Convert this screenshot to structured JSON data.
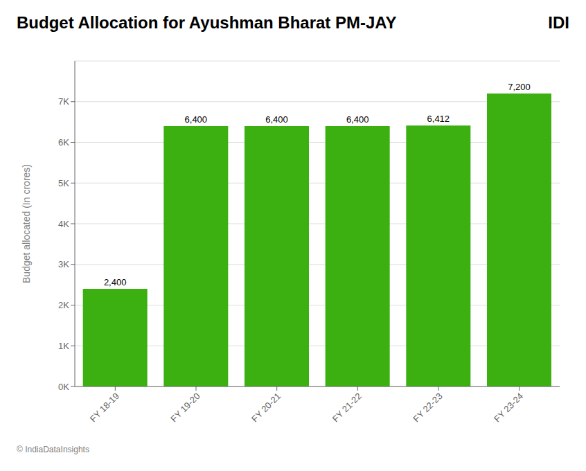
{
  "chart_data": {
    "type": "bar",
    "title": "Budget Allocation for Ayushman Bharat PM-JAY",
    "categories": [
      "FY 18-19",
      "FY 19-20",
      "FY 20-21",
      "FY 21-22",
      "FY 22-23",
      "FY 23-24"
    ],
    "values": [
      2400,
      6400,
      6400,
      6400,
      6412,
      7200
    ],
    "value_labels": [
      "2,400",
      "6,400",
      "6,400",
      "6,400",
      "6,412",
      "7,200"
    ],
    "data_labels": true,
    "color": "#3cb010",
    "ylabel": "Budget allocated (In crores)",
    "ylim": [
      0,
      8000
    ],
    "yticks": [
      {
        "value": 0,
        "label": "0K"
      },
      {
        "value": 1000,
        "label": "1K"
      },
      {
        "value": 2000,
        "label": "2K"
      },
      {
        "value": 3000,
        "label": "3K"
      },
      {
        "value": 4000,
        "label": "4K"
      },
      {
        "value": 5000,
        "label": "5K"
      },
      {
        "value": 6000,
        "label": "6K"
      },
      {
        "value": 7000,
        "label": "7K"
      }
    ],
    "grid": true,
    "annotations": [
      "© IndiaDataInsights",
      "IDI"
    ]
  }
}
